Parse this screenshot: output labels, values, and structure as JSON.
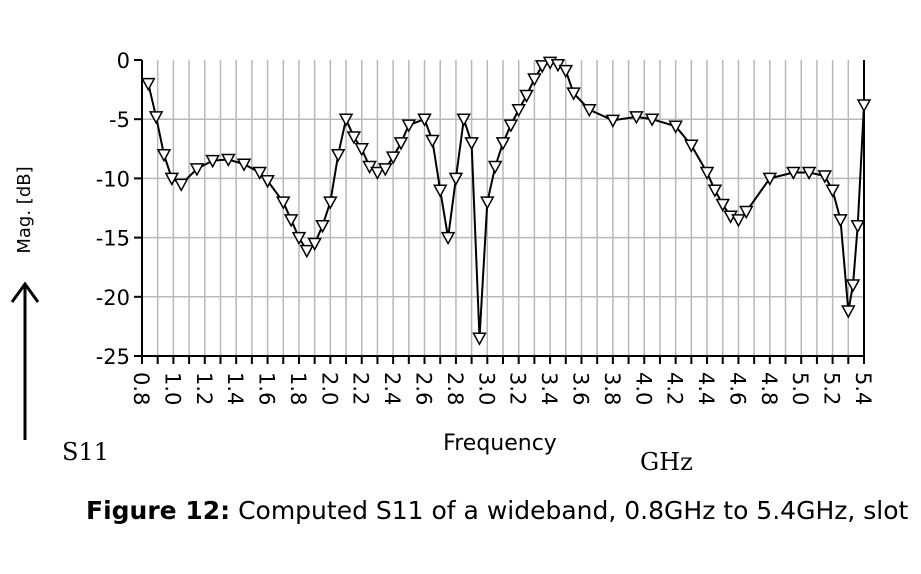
{
  "chart_data": {
    "type": "line",
    "xlabel": "Frequency",
    "x_unit": "GHz",
    "ylabel": "Mag. [dB]",
    "series_label": "S11",
    "xlim": [
      0.8,
      5.4
    ],
    "ylim": [
      -25,
      0
    ],
    "x_ticks": [
      "0.8",
      "1.0",
      "1.2",
      "1.4",
      "1.6",
      "1.8",
      "2.0",
      "2.2",
      "2.4",
      "2.6",
      "2.8",
      "3.0",
      "3.2",
      "3.4",
      "3.6",
      "3.8",
      "4.0",
      "4.2",
      "4.4",
      "4.6",
      "4.8",
      "5.0",
      "5.2",
      "5.4"
    ],
    "y_ticks": [
      "0",
      "-5",
      "-10",
      "-15",
      "-20",
      "-25"
    ],
    "y_tick_values": [
      0,
      -5,
      -10,
      -15,
      -20,
      -25
    ],
    "grid": true,
    "marker": "down-triangle",
    "series": [
      {
        "x": [
          0.84,
          0.89,
          0.94,
          0.99,
          1.05,
          1.15,
          1.25,
          1.35,
          1.45,
          1.55,
          1.6,
          1.7,
          1.75,
          1.8,
          1.85,
          1.9,
          1.95,
          2.0,
          2.05,
          2.1,
          2.15,
          2.2,
          2.25,
          2.3,
          2.35,
          2.4,
          2.45,
          2.5,
          2.6,
          2.65,
          2.7,
          2.75,
          2.8,
          2.85,
          2.9,
          2.95,
          3.0,
          3.05,
          3.1,
          3.15,
          3.2,
          3.25,
          3.3,
          3.35,
          3.4,
          3.45,
          3.5,
          3.55,
          3.65,
          3.8,
          3.95,
          4.05,
          4.2,
          4.3,
          4.4,
          4.45,
          4.5,
          4.55,
          4.6,
          4.65,
          4.8,
          4.95,
          5.05,
          5.15,
          5.2,
          5.25,
          5.3,
          5.33,
          5.36,
          5.4
        ],
        "y": [
          -2.0,
          -4.8,
          -8.0,
          -10.0,
          -10.5,
          -9.2,
          -8.5,
          -8.4,
          -8.8,
          -9.5,
          -10.2,
          -12.0,
          -13.5,
          -15.0,
          -16.1,
          -15.5,
          -14.0,
          -12.0,
          -8.0,
          -5.0,
          -6.5,
          -7.5,
          -9.0,
          -9.5,
          -9.2,
          -8.2,
          -7.0,
          -5.5,
          -5.0,
          -6.8,
          -11.0,
          -15.0,
          -10.0,
          -5.0,
          -7.0,
          -23.5,
          -12.0,
          -9.0,
          -7.0,
          -5.5,
          -4.2,
          -3.0,
          -1.6,
          -0.5,
          -0.2,
          -0.4,
          -0.9,
          -2.8,
          -4.2,
          -5.1,
          -4.8,
          -5.0,
          -5.6,
          -7.2,
          -9.5,
          -11.0,
          -12.2,
          -13.2,
          -13.5,
          -12.8,
          -10.0,
          -9.5,
          -9.5,
          -9.8,
          -11.0,
          -13.5,
          -21.2,
          -19.0,
          -14.0,
          -3.8
        ]
      }
    ]
  },
  "caption": {
    "label": "Figure 12:",
    "text": " Computed S11 of a wideband, 0.8GHz to 5.4GHz, slot"
  }
}
